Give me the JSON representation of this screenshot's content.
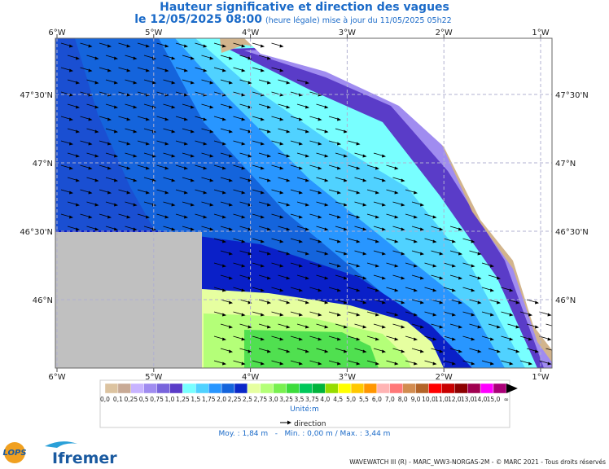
{
  "header": {
    "title": "Hauteur significative et direction des vagues",
    "date": "le 12/05/2025 08:00",
    "note": "(heure légale) mise à jour du 11/05/2025 05h22"
  },
  "map": {
    "lon_ticks": [
      "6°W",
      "5°W",
      "4°W",
      "3°W",
      "2°W",
      "1°W"
    ],
    "lat_ticks": [
      "47°30'N",
      "47°N",
      "46°30'N",
      "46°N"
    ]
  },
  "colorbar": {
    "labels": [
      "0,0",
      "0,1",
      "0,25",
      "0,5",
      "0,75",
      "1,0",
      "1,25",
      "1,5",
      "1,75",
      "2,0",
      "2,25",
      "2,5",
      "2,75",
      "3,0",
      "3,25",
      "3,5",
      "3,75",
      "4,0",
      "4,5",
      "5,0",
      "5,5",
      "6,0",
      "7,0",
      "8,0",
      "9,0",
      "10,0",
      "11,0",
      "12,0",
      "13,0",
      "14,0",
      "15,0",
      "∞"
    ],
    "colors": [
      "#dcc3a0",
      "#c8aa96",
      "#c8b4ff",
      "#a08cf0",
      "#7864dc",
      "#5a3cc8",
      "#78ffff",
      "#50d2ff",
      "#2896ff",
      "#1464dc",
      "#0a28c8",
      "#e6ffa0",
      "#b4ff78",
      "#78f050",
      "#3cdc3c",
      "#00c85a",
      "#00b43c",
      "#96dc00",
      "#ffff00",
      "#ffc800",
      "#ff9600",
      "#ffb4b4",
      "#ff7878",
      "#d28c50",
      "#b46428",
      "#ff0000",
      "#c80000",
      "#8c0000",
      "#a00050",
      "#ff00ff",
      "#aa0078"
    ],
    "unit": "Unité:m",
    "direction": "direction",
    "stats": "Moy. : 1,84 m   -   Min. : 0,00 m / Max. : 3,44 m"
  },
  "footer": {
    "credits": "WAVEWATCH III (R) - MARC_WW3-NORGAS-2M - © MARC 2021 - Tous droits réservés",
    "logo_lops": "LOPS",
    "logo_ifremer": "Ifremer"
  }
}
